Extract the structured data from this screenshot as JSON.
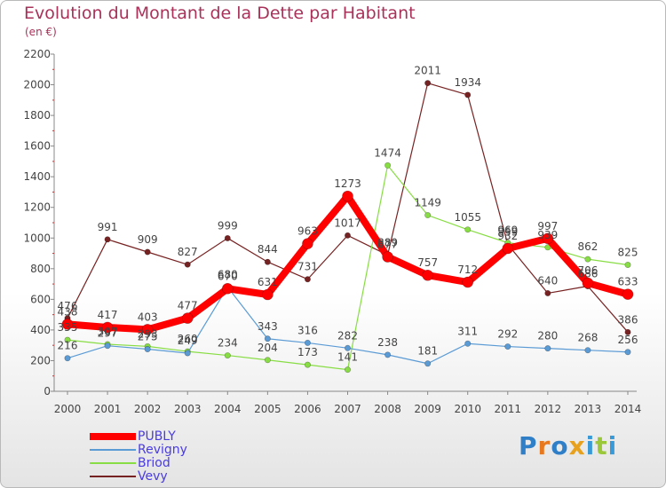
{
  "title": "Evolution du Montant de la Dette par Habitant",
  "subtitle": "(en €)",
  "logo": {
    "text": "Proxiti",
    "letters": [
      {
        "ch": "P",
        "color": "#2f7fc8"
      },
      {
        "ch": "r",
        "color": "#e8781e"
      },
      {
        "ch": "o",
        "color": "#2f7fc8"
      },
      {
        "ch": "x",
        "color": "#e8a11e"
      },
      {
        "ch": "i",
        "color": "#3a9ad8"
      },
      {
        "ch": "t",
        "color": "#9ac83a"
      },
      {
        "ch": "i",
        "color": "#3a9ad8"
      }
    ]
  },
  "chart_data": {
    "type": "line",
    "title": "Evolution du Montant de la Dette par Habitant",
    "subtitle": "(en €)",
    "x": [
      "2000",
      "2001",
      "2002",
      "2003",
      "2004",
      "2005",
      "2006",
      "2007",
      "2008",
      "2009",
      "2010",
      "2011",
      "2012",
      "2013",
      "2014"
    ],
    "ylim": [
      0,
      2200
    ],
    "yticks": [
      "0",
      "200",
      "400",
      "600",
      "800",
      "1000",
      "1200",
      "1400",
      "1600",
      "1800",
      "2000",
      "2200"
    ],
    "grid": false,
    "legend_position": "bottom-left",
    "series": [
      {
        "name": "PUBLY",
        "color": "#ff0000",
        "values": [
          438,
          417,
          403,
          477,
          670,
          631,
          963,
          1273,
          877,
          757,
          712,
          932,
          997,
          706,
          633
        ],
        "labels": [
          "438",
          "417",
          "403",
          "477",
          "670",
          "631",
          "963",
          "1273",
          "877",
          "757",
          "712",
          "932",
          "997",
          "706",
          "633"
        ]
      },
      {
        "name": "Revigny",
        "color": "#5b9bd5",
        "values": [
          216,
          297,
          275,
          249,
          680,
          343,
          316,
          282,
          238,
          181,
          311,
          292,
          280,
          268,
          256
        ],
        "labels": [
          "216",
          "297",
          "275",
          "249",
          "680",
          "343",
          "316",
          "282",
          "238",
          "181",
          "311",
          "292",
          "280",
          "268",
          "256"
        ]
      },
      {
        "name": "Briod",
        "color": "#88dd44",
        "values": [
          335,
          307,
          293,
          260,
          234,
          204,
          173,
          141,
          1474,
          1149,
          1055,
          969,
          939,
          862,
          825
        ],
        "labels": [
          "335",
          "307",
          "293",
          "260",
          "234",
          "204",
          "173",
          "141",
          "1474",
          "1149",
          "1055",
          "969",
          "939",
          "862",
          "825"
        ]
      },
      {
        "name": "Vevy",
        "color": "#772222",
        "values": [
          476,
          991,
          909,
          827,
          999,
          844,
          731,
          1017,
          889,
          2011,
          1934,
          959,
          640,
          686,
          386
        ],
        "labels": [
          "476",
          "991",
          "909",
          "827",
          "999",
          "844",
          "731",
          "1017",
          "889",
          "2011",
          "1934",
          "959",
          "640",
          "686",
          "386"
        ]
      }
    ]
  }
}
